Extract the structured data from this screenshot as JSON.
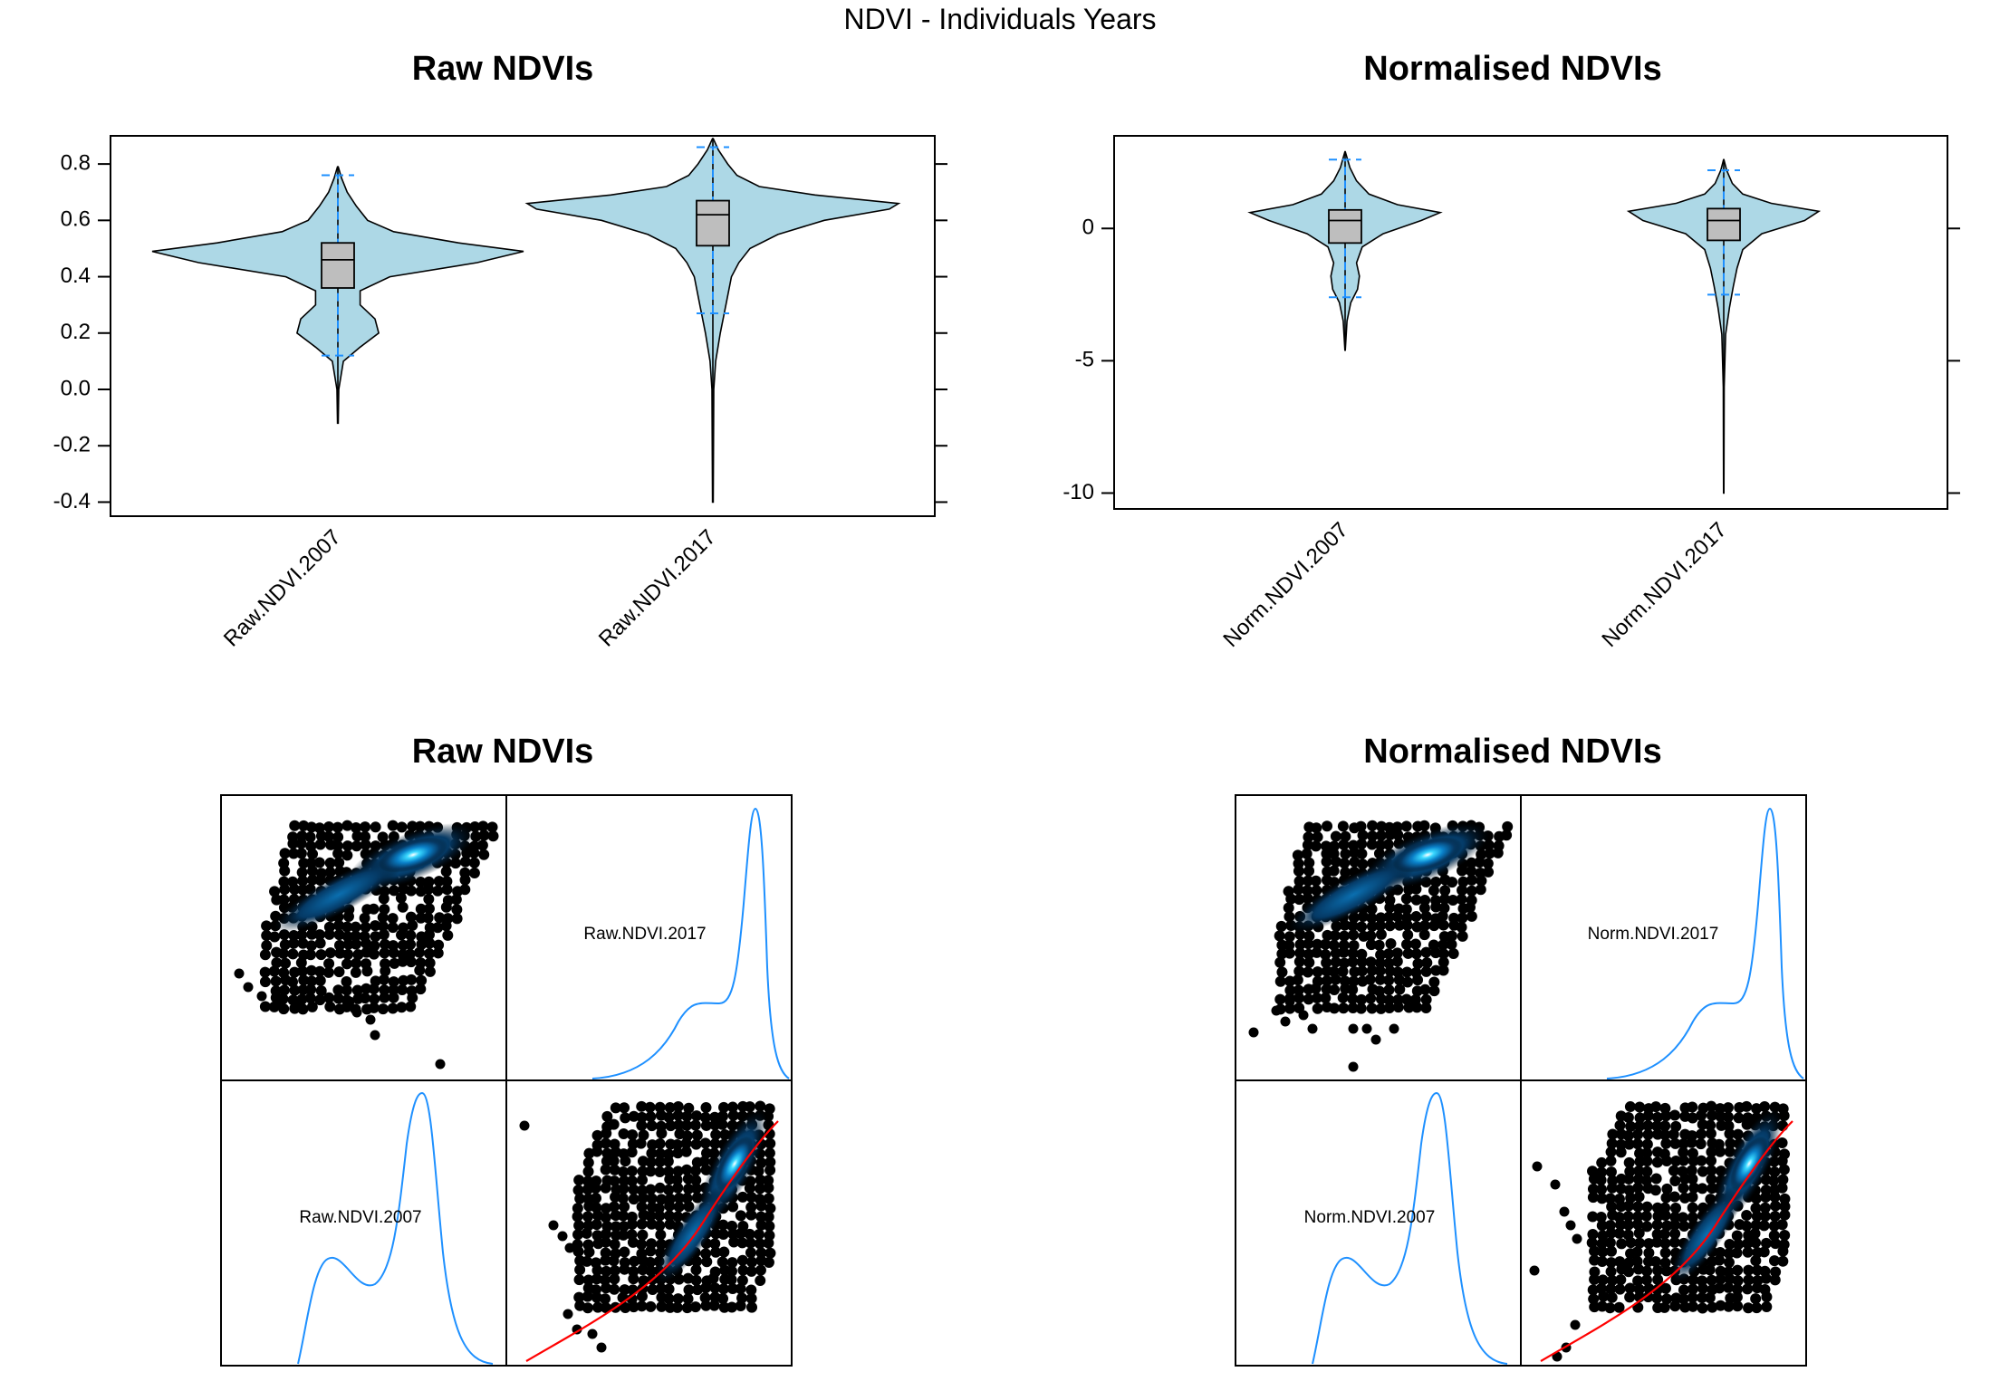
{
  "figure": {
    "title": "NDVI - Individuals Years"
  },
  "chart_data": [
    {
      "type": "violin",
      "title": "Raw NDVIs",
      "categories": [
        "Raw.NDVI.2007",
        "Raw.NDVI.2017"
      ],
      "ylim": [
        -0.45,
        0.9
      ],
      "yticks": [
        "0.8",
        "0.6",
        "0.4",
        "0.2",
        "0.0",
        "-0.2",
        "-0.4"
      ],
      "series": [
        {
          "min": -0.12,
          "whisker_low": 0.12,
          "q1": 0.36,
          "median": 0.46,
          "q3": 0.52,
          "whisker_high": 0.76,
          "max": 0.79,
          "density": [
            [
              -0.12,
              0.002
            ],
            [
              0.0,
              0.005
            ],
            [
              0.1,
              0.03
            ],
            [
              0.15,
              0.12
            ],
            [
              0.2,
              0.22
            ],
            [
              0.25,
              0.2
            ],
            [
              0.3,
              0.12
            ],
            [
              0.35,
              0.12
            ],
            [
              0.4,
              0.28
            ],
            [
              0.45,
              0.75
            ],
            [
              0.49,
              1.0
            ],
            [
              0.52,
              0.65
            ],
            [
              0.56,
              0.3
            ],
            [
              0.6,
              0.16
            ],
            [
              0.65,
              0.1
            ],
            [
              0.7,
              0.05
            ],
            [
              0.75,
              0.02
            ],
            [
              0.79,
              0.002
            ]
          ]
        },
        {
          "min": -0.4,
          "whisker_low": 0.27,
          "q1": 0.51,
          "median": 0.62,
          "q3": 0.67,
          "whisker_high": 0.86,
          "max": 0.89,
          "density": [
            [
              -0.4,
              0.002
            ],
            [
              0.0,
              0.005
            ],
            [
              0.1,
              0.015
            ],
            [
              0.2,
              0.04
            ],
            [
              0.3,
              0.07
            ],
            [
              0.4,
              0.1
            ],
            [
              0.45,
              0.14
            ],
            [
              0.5,
              0.2
            ],
            [
              0.55,
              0.35
            ],
            [
              0.6,
              0.6
            ],
            [
              0.64,
              0.95
            ],
            [
              0.66,
              1.0
            ],
            [
              0.69,
              0.55
            ],
            [
              0.72,
              0.25
            ],
            [
              0.76,
              0.13
            ],
            [
              0.8,
              0.08
            ],
            [
              0.85,
              0.03
            ],
            [
              0.89,
              0.002
            ]
          ]
        }
      ]
    },
    {
      "type": "violin",
      "title": "Normalised NDVIs",
      "categories": [
        "Norm.NDVI.2007",
        "Norm.NDVI.2017"
      ],
      "ylim": [
        -10.6,
        3.5
      ],
      "yticks": [
        "0",
        "-5",
        "-10"
      ],
      "series": [
        {
          "min": -4.6,
          "whisker_low": -2.6,
          "q1": -0.55,
          "median": 0.3,
          "q3": 0.7,
          "whisker_high": 2.6,
          "max": 2.9,
          "density": [
            [
              -4.6,
              0.002
            ],
            [
              -3.5,
              0.02
            ],
            [
              -2.8,
              0.06
            ],
            [
              -2.3,
              0.13
            ],
            [
              -1.8,
              0.15
            ],
            [
              -1.3,
              0.12
            ],
            [
              -0.7,
              0.18
            ],
            [
              -0.2,
              0.4
            ],
            [
              0.3,
              0.8
            ],
            [
              0.6,
              1.0
            ],
            [
              0.9,
              0.55
            ],
            [
              1.3,
              0.25
            ],
            [
              1.8,
              0.12
            ],
            [
              2.3,
              0.05
            ],
            [
              2.9,
              0.002
            ]
          ]
        },
        {
          "min": -10.0,
          "whisker_low": -2.5,
          "q1": -0.45,
          "median": 0.3,
          "q3": 0.75,
          "whisker_high": 2.2,
          "max": 2.6,
          "density": [
            [
              -10.0,
              0.002
            ],
            [
              -6.0,
              0.005
            ],
            [
              -4.0,
              0.02
            ],
            [
              -3.0,
              0.06
            ],
            [
              -2.2,
              0.1
            ],
            [
              -1.5,
              0.14
            ],
            [
              -0.8,
              0.2
            ],
            [
              -0.2,
              0.4
            ],
            [
              0.3,
              0.85
            ],
            [
              0.65,
              1.0
            ],
            [
              0.95,
              0.5
            ],
            [
              1.3,
              0.2
            ],
            [
              1.7,
              0.09
            ],
            [
              2.2,
              0.03
            ],
            [
              2.6,
              0.002
            ]
          ]
        }
      ]
    },
    {
      "type": "scatter-matrix",
      "title": "Raw NDVIs",
      "variables": [
        "Raw.NDVI.2007",
        "Raw.NDVI.2017"
      ]
    },
    {
      "type": "scatter-matrix",
      "title": "Normalised NDVIs",
      "variables": [
        "Norm.NDVI.2007",
        "Norm.NDVI.2017"
      ]
    }
  ],
  "colors": {
    "violin_fill": "#add8e6",
    "box_fill": "#bebebe",
    "whisker": "#1e90ff",
    "density_line": "#1e90ff",
    "smooth_line": "#ff0000"
  }
}
